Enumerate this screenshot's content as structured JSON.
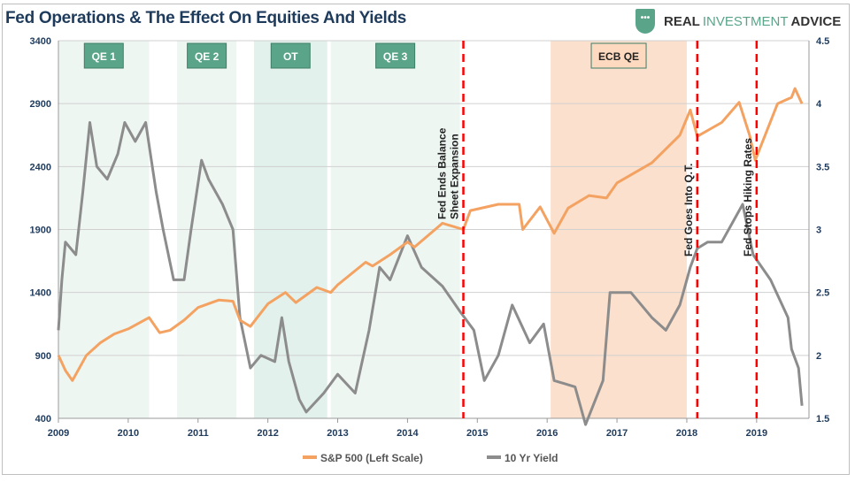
{
  "header": {
    "title": "Fed Operations & The Effect On Equities And Yields",
    "logo_text": "REAL INVESTMENT ADVICE"
  },
  "chart_data": {
    "type": "line",
    "title": "Fed Operations & The Effect On Equities And Yields",
    "xlim": [
      2009,
      2019.75
    ],
    "x_ticks": [
      "2009",
      "2010",
      "2011",
      "2012",
      "2013",
      "2014",
      "2015",
      "2016",
      "2017",
      "2018",
      "2019"
    ],
    "y_left": {
      "lim": [
        400,
        3400
      ],
      "ticks": [
        "400",
        "900",
        "1400",
        "1900",
        "2400",
        "2900",
        "3400"
      ]
    },
    "y_right": {
      "lim": [
        1.5,
        4.5
      ],
      "ticks": [
        "1.5",
        "2",
        "2.5",
        "3",
        "3.5",
        "4",
        "4.5"
      ]
    },
    "grid": true,
    "legend_placement": "bottom",
    "series": [
      {
        "name": "S&P 500 (Left Scale)",
        "axis": "left",
        "color": "#f4a261",
        "x": [
          2009.0,
          2009.1,
          2009.2,
          2009.4,
          2009.6,
          2009.8,
          2010.0,
          2010.3,
          2010.45,
          2010.6,
          2010.8,
          2011.0,
          2011.3,
          2011.5,
          2011.6,
          2011.75,
          2012.0,
          2012.25,
          2012.4,
          2012.7,
          2012.9,
          2013.0,
          2013.4,
          2013.5,
          2013.75,
          2014.0,
          2014.1,
          2014.5,
          2014.8,
          2014.9,
          2015.3,
          2015.6,
          2015.65,
          2015.9,
          2016.1,
          2016.3,
          2016.6,
          2016.85,
          2017.0,
          2017.5,
          2017.9,
          2018.05,
          2018.15,
          2018.5,
          2018.75,
          2018.9,
          2018.98,
          2019.3,
          2019.5,
          2019.55,
          2019.65
        ],
        "y": [
          900,
          780,
          700,
          900,
          1000,
          1070,
          1110,
          1200,
          1080,
          1100,
          1180,
          1280,
          1340,
          1330,
          1180,
          1130,
          1310,
          1400,
          1320,
          1440,
          1400,
          1460,
          1640,
          1610,
          1700,
          1800,
          1760,
          1950,
          1900,
          2050,
          2100,
          2100,
          1900,
          2080,
          1870,
          2070,
          2170,
          2150,
          2270,
          2430,
          2650,
          2850,
          2640,
          2750,
          2910,
          2650,
          2450,
          2900,
          2950,
          3020,
          2900
        ]
      },
      {
        "name": "10 Yr Yield",
        "axis": "right",
        "color": "#8c8c8c",
        "x": [
          2009.0,
          2009.05,
          2009.1,
          2009.25,
          2009.35,
          2009.45,
          2009.55,
          2009.7,
          2009.85,
          2009.95,
          2010.1,
          2010.25,
          2010.4,
          2010.5,
          2010.65,
          2010.8,
          2010.9,
          2011.05,
          2011.15,
          2011.35,
          2011.5,
          2011.6,
          2011.75,
          2011.9,
          2012.1,
          2012.2,
          2012.3,
          2012.45,
          2012.55,
          2012.8,
          2013.0,
          2013.25,
          2013.45,
          2013.6,
          2013.75,
          2014.0,
          2014.2,
          2014.5,
          2014.75,
          2014.95,
          2015.1,
          2015.3,
          2015.5,
          2015.75,
          2015.95,
          2016.1,
          2016.4,
          2016.55,
          2016.8,
          2016.9,
          2017.2,
          2017.5,
          2017.7,
          2017.9,
          2018.05,
          2018.15,
          2018.3,
          2018.5,
          2018.8,
          2018.95,
          2019.2,
          2019.45,
          2019.5,
          2019.6,
          2019.65
        ],
        "y": [
          2.2,
          2.6,
          2.9,
          2.8,
          3.3,
          3.85,
          3.5,
          3.4,
          3.6,
          3.85,
          3.7,
          3.85,
          3.3,
          3.0,
          2.6,
          2.6,
          3.0,
          3.55,
          3.4,
          3.2,
          3.0,
          2.3,
          1.9,
          2.0,
          1.95,
          2.3,
          1.95,
          1.65,
          1.55,
          1.7,
          1.85,
          1.7,
          2.2,
          2.7,
          2.6,
          2.95,
          2.7,
          2.55,
          2.35,
          2.2,
          1.8,
          2.0,
          2.4,
          2.1,
          2.25,
          1.8,
          1.75,
          1.45,
          1.8,
          2.5,
          2.5,
          2.3,
          2.2,
          2.4,
          2.7,
          2.85,
          2.9,
          2.9,
          3.2,
          2.8,
          2.6,
          2.3,
          2.05,
          1.9,
          1.6
        ]
      }
    ],
    "regions": [
      {
        "label": "QE 1",
        "start": 2009.0,
        "end": 2010.3,
        "color": "#eef6f2",
        "box": "#5aa58a"
      },
      {
        "label": "QE 2",
        "start": 2010.7,
        "end": 2011.55,
        "color": "#eef6f2",
        "box": "#5aa58a"
      },
      {
        "label": "OT",
        "start": 2011.8,
        "end": 2012.85,
        "color": "#e2f1eb",
        "box": "#5aa58a"
      },
      {
        "label": "QE 3",
        "start": 2012.9,
        "end": 2014.75,
        "color": "#eef6f2",
        "box": "#5aa58a"
      },
      {
        "label": "ECB QE",
        "start": 2016.05,
        "end": 2018.0,
        "color": "#fbe0cd",
        "box": "#fcd9bf"
      }
    ],
    "events": [
      {
        "x": 2014.8,
        "label_lines": [
          "Fed Ends Balance",
          "Sheet Expansion"
        ]
      },
      {
        "x": 2018.15,
        "label_lines": [
          "Fed Goes Into Q.T."
        ]
      },
      {
        "x": 2019.0,
        "label_lines": [
          "Fed Stops Hiking Rates"
        ]
      }
    ],
    "event_color": "#ff0000"
  }
}
